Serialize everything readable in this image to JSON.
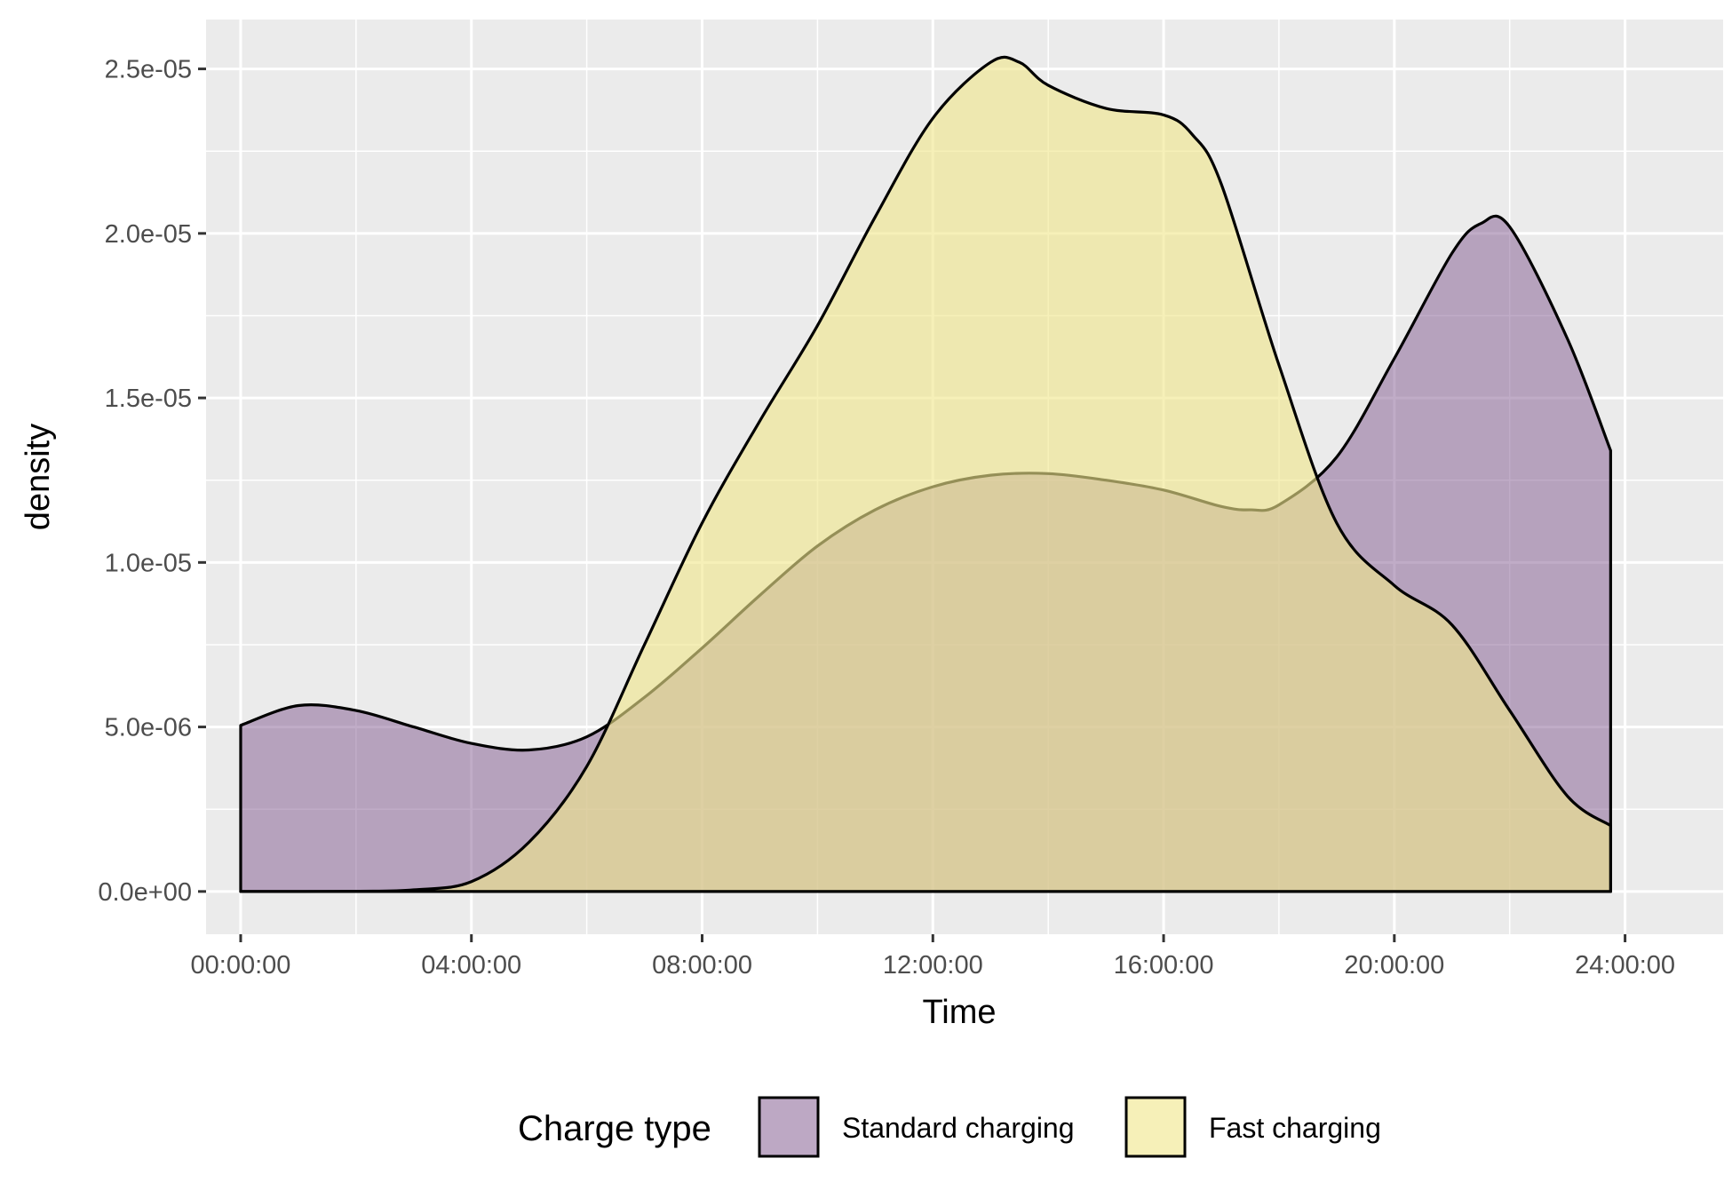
{
  "chart_data": {
    "type": "area",
    "xlabel": "Time",
    "ylabel": "density",
    "x_unit": "hour of day",
    "xlim": [
      -0.6,
      25.7
    ],
    "ylim": [
      -1.3e-06,
      2.65e-05
    ],
    "x_ticks": [
      {
        "value": 0,
        "label": "00:00:00"
      },
      {
        "value": 4,
        "label": "04:00:00"
      },
      {
        "value": 8,
        "label": "08:00:00"
      },
      {
        "value": 12,
        "label": "12:00:00"
      },
      {
        "value": 16,
        "label": "16:00:00"
      },
      {
        "value": 20,
        "label": "20:00:00"
      },
      {
        "value": 24,
        "label": "24:00:00"
      }
    ],
    "y_ticks": [
      {
        "value": 0,
        "label": "0.0e+00"
      },
      {
        "value": 5e-06,
        "label": "5.0e-06"
      },
      {
        "value": 1e-05,
        "label": "1.0e-05"
      },
      {
        "value": 1.5e-05,
        "label": "1.5e-05"
      },
      {
        "value": 2e-05,
        "label": "2.0e-05"
      },
      {
        "value": 2.5e-05,
        "label": "2.5e-05"
      }
    ],
    "grid": true,
    "legend": {
      "title": "Charge type",
      "position": "bottom"
    },
    "series": [
      {
        "name": "Standard charging",
        "color": "#7b5189",
        "x": [
          0,
          1,
          2,
          3,
          4,
          5,
          6,
          7,
          8,
          9,
          10,
          11,
          12,
          13,
          14,
          15,
          16,
          17,
          17.5,
          18,
          19,
          20,
          21,
          21.5,
          22,
          23,
          23.75
        ],
        "y": [
          5.05e-06,
          5.65e-06,
          5.5e-06,
          5e-06,
          4.5e-06,
          4.3e-06,
          4.7e-06,
          5.9e-06,
          7.4e-06,
          9e-06,
          1.05e-05,
          1.16e-05,
          1.23e-05,
          1.265e-05,
          1.27e-05,
          1.25e-05,
          1.22e-05,
          1.17e-05,
          1.16e-05,
          1.175e-05,
          1.32e-05,
          1.62e-05,
          1.94e-05,
          2.03e-05,
          2.02e-05,
          1.68e-05,
          1.34e-05
        ]
      },
      {
        "name": "Fast charging",
        "color": "#f0e68c",
        "x": [
          0,
          2,
          3,
          4,
          5,
          6,
          7,
          8,
          9,
          10,
          11,
          12,
          13,
          13.5,
          14,
          15,
          16,
          16.5,
          17,
          18,
          19,
          20,
          21,
          22,
          23,
          23.75
        ],
        "y": [
          0,
          5e-09,
          5e-08,
          3e-07,
          1.5e-06,
          3.8e-06,
          7.5e-06,
          1.12e-05,
          1.43e-05,
          1.72e-05,
          2.05e-05,
          2.35e-05,
          2.52e-05,
          2.52e-05,
          2.45e-05,
          2.38e-05,
          2.36e-05,
          2.3e-05,
          2.15e-05,
          1.6e-05,
          1.12e-05,
          9.3e-06,
          8.1e-06,
          5.5e-06,
          2.9e-06,
          2e-06
        ]
      }
    ]
  }
}
